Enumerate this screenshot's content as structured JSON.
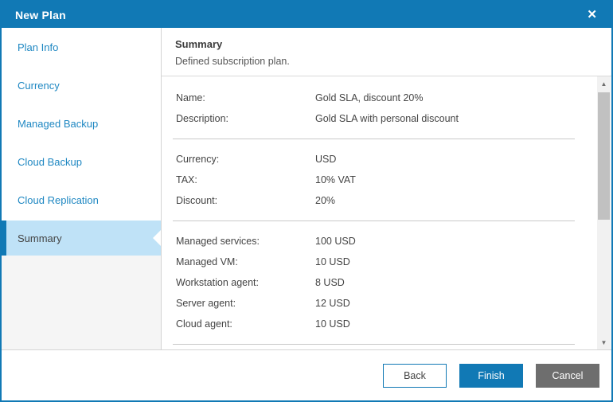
{
  "window": {
    "title": "New Plan"
  },
  "colors": {
    "titlebar_blue": "#1179b5",
    "link_blue": "#1e87c2",
    "selected_step_bg": "#bfe2f7",
    "selected_step_stripe": "#1179b5",
    "finish_button_bg": "#1179b5",
    "cancel_button_bg": "#6e6e6e",
    "text": "#444444"
  },
  "sidebar": {
    "items": [
      {
        "label": "Plan Info",
        "selected": false
      },
      {
        "label": "Currency",
        "selected": false
      },
      {
        "label": "Managed Backup",
        "selected": false
      },
      {
        "label": "Cloud Backup",
        "selected": false
      },
      {
        "label": "Cloud Replication",
        "selected": false
      },
      {
        "label": "Summary",
        "selected": true
      }
    ]
  },
  "content": {
    "title": "Summary",
    "subtitle": "Defined subscription plan.",
    "sections": [
      {
        "rows": [
          {
            "label": "Name:",
            "value": "Gold SLA, discount 20%"
          },
          {
            "label": "Description:",
            "value": "Gold SLA with personal discount"
          }
        ]
      },
      {
        "rows": [
          {
            "label": "Currency:",
            "value": "USD"
          },
          {
            "label": "TAX:",
            "value": "10% VAT"
          },
          {
            "label": "Discount:",
            "value": "20%"
          }
        ]
      },
      {
        "rows": [
          {
            "label": "Managed services:",
            "value": "100 USD"
          },
          {
            "label": "Managed VM:",
            "value": "10 USD"
          },
          {
            "label": "Workstation agent:",
            "value": "8 USD"
          },
          {
            "label": "Server agent:",
            "value": "12 USD"
          },
          {
            "label": "Cloud agent:",
            "value": "10 USD"
          }
        ]
      }
    ]
  },
  "scrollbar": {
    "up_arrow": "▲",
    "down_arrow": "▼"
  },
  "footer": {
    "back_label": "Back",
    "finish_label": "Finish",
    "cancel_label": "Cancel"
  }
}
